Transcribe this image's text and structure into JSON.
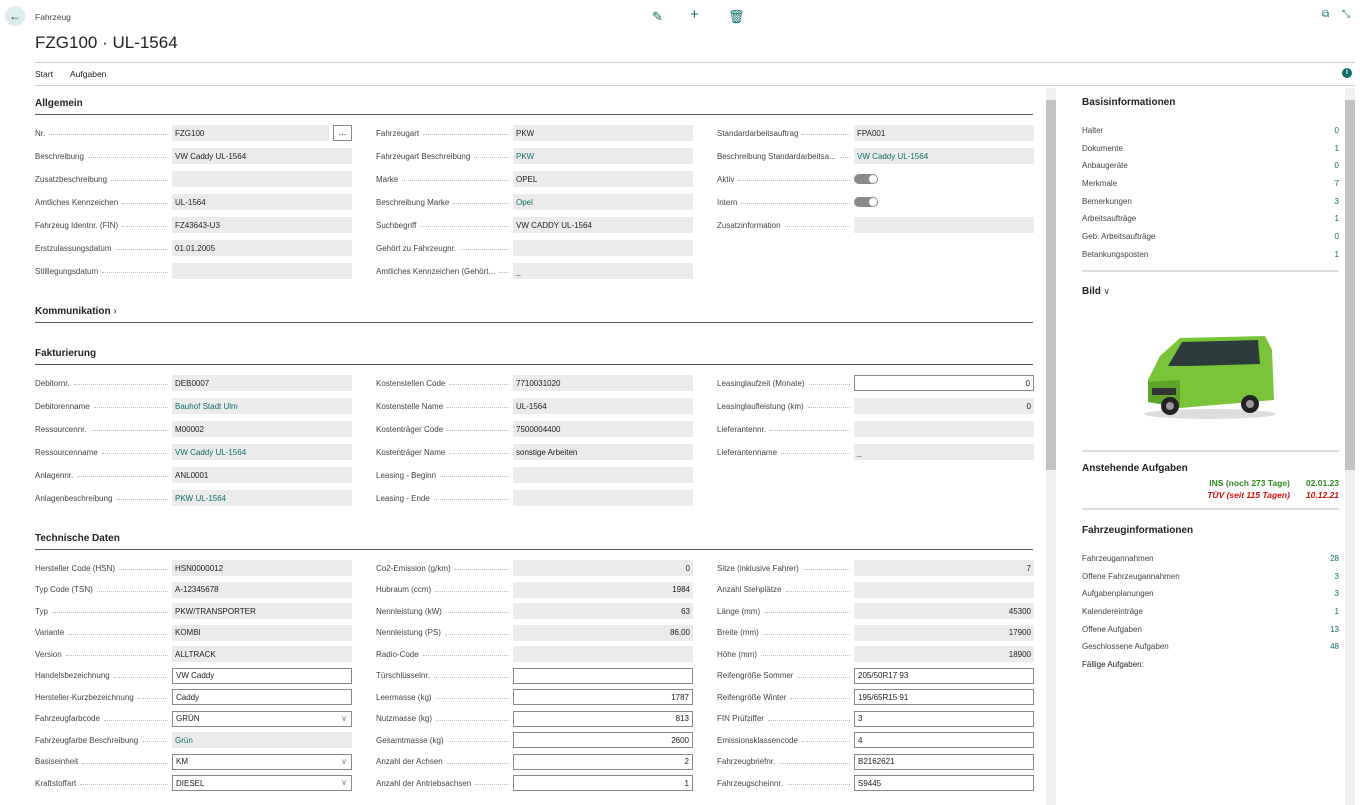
{
  "header": {
    "breadcrumb": "Fahrzeug",
    "title": "FZG100 · UL-1564",
    "icons": [
      "back-arrow-icon",
      "edit-icon",
      "plus-icon",
      "delete-icon",
      "open-new-window-icon",
      "collapse-icon"
    ]
  },
  "menu": {
    "items": [
      "Start",
      "Aufgaben"
    ]
  },
  "colors": {
    "accent": "#0b6f6a",
    "green": "#2e8b1e",
    "red": "#d01010"
  },
  "sections": [
    {
      "title": "Allgemein",
      "columns": [
        [
          {
            "label": "Nr.",
            "value": "FZG100",
            "type": "readonly",
            "lookup": "..."
          },
          {
            "label": "Beschreibung",
            "value": "VW Caddy UL-1564",
            "type": "readonly"
          },
          {
            "label": "Zusatzbeschreibung",
            "value": "",
            "type": "readonly"
          },
          {
            "label": "Amtliches Kennzeichen",
            "value": "UL-1564",
            "type": "readonly"
          },
          {
            "label": "Fahrzeug Identnr. (FIN)",
            "value": "FZ43643-U3",
            "type": "readonly"
          },
          {
            "label": "Erstzulassungsdatum",
            "value": "01.01.2005",
            "type": "readonly"
          },
          {
            "label": "Stilllegungsdatum",
            "value": "",
            "type": "readonly"
          }
        ],
        [
          {
            "label": "Fahrzeugart",
            "value": "PKW",
            "type": "readonly"
          },
          {
            "label": "Fahrzeugart Beschreibung",
            "value": "PKW",
            "type": "link"
          },
          {
            "label": "Marke",
            "value": "OPEL",
            "type": "readonly"
          },
          {
            "label": "Beschreibung Marke",
            "value": "Opel",
            "type": "link"
          },
          {
            "label": "Suchbegriff",
            "value": "VW CADDY UL-1564",
            "type": "readonly"
          },
          {
            "label": "Gehört zu Fahrzeugnr.",
            "value": "",
            "type": "readonly"
          },
          {
            "label": "Amtliches Kennzeichen (Gehört...",
            "value": "_",
            "type": "link"
          }
        ],
        [
          {
            "label": "Standardarbeitsauftrag",
            "value": "FPA001",
            "type": "readonly"
          },
          {
            "label": "Beschreibung Standardarbeitsa...",
            "value": "VW Caddy UL-1564",
            "type": "link"
          },
          {
            "label": "Aktiv",
            "value": "",
            "type": "toggle"
          },
          {
            "label": "Intern",
            "value": "",
            "type": "toggle"
          },
          {
            "label": "Zusatzinformation",
            "value": "",
            "type": "readonly"
          }
        ]
      ]
    },
    {
      "title": "Kommunikation",
      "collapsed": true,
      "columns": []
    },
    {
      "title": "Fakturierung",
      "columns": [
        [
          {
            "label": "Debitornr.",
            "value": "DEB0007",
            "type": "readonly"
          },
          {
            "label": "Debitorenname",
            "value": "Bauhof Stadt Ulm",
            "type": "link"
          },
          {
            "label": "Ressourcennr.",
            "value": "M00002",
            "type": "readonly"
          },
          {
            "label": "Ressourcenname",
            "value": "VW Caddy UL-1564",
            "type": "link"
          },
          {
            "label": "Anlagennr.",
            "value": "ANL0001",
            "type": "readonly"
          },
          {
            "label": "Anlagenbeschreibung",
            "value": "PKW UL-1564",
            "type": "link"
          }
        ],
        [
          {
            "label": "Kostenstellen Code",
            "value": "7710031020",
            "type": "readonly"
          },
          {
            "label": "Kostenstelle Name",
            "value": "UL-1564",
            "type": "readonly"
          },
          {
            "label": "Kostenträger Code",
            "value": "7500004400",
            "type": "readonly"
          },
          {
            "label": "Kostenträger Name",
            "value": "sonstige Arbeiten",
            "type": "readonly"
          },
          {
            "label": "Leasing - Beginn",
            "value": "",
            "type": "readonly"
          },
          {
            "label": "Leasing - Ende",
            "value": "",
            "type": "readonly"
          }
        ],
        [
          {
            "label": "Leasinglaufzeit (Monate)",
            "value": "0",
            "type": "input",
            "align": "right"
          },
          {
            "label": "Leasinglaufleistung (km)",
            "value": "0",
            "type": "readonly",
            "align": "right"
          },
          {
            "label": "Lieferantennr.",
            "value": "",
            "type": "readonly"
          },
          {
            "label": "Lieferantenname",
            "value": "_",
            "type": "link"
          }
        ]
      ]
    },
    {
      "title": "Technische Daten",
      "columns": [
        [
          {
            "label": "Hersteller Code (HSN)",
            "value": "HSN0000012",
            "type": "readonly"
          },
          {
            "label": "Typ Code (TSN)",
            "value": "A-12345678",
            "type": "readonly"
          },
          {
            "label": "Typ",
            "value": "PKW/TRANSPORTER",
            "type": "readonly"
          },
          {
            "label": "Variante",
            "value": "KOMBI",
            "type": "readonly"
          },
          {
            "label": "Version",
            "value": "ALLTRACK",
            "type": "readonly"
          },
          {
            "label": "Handelsbezeichnung",
            "value": "VW Caddy",
            "type": "input"
          },
          {
            "label": "Hersteller-Kurzbezeichnung",
            "value": "Caddy",
            "type": "input"
          },
          {
            "label": "Fahrzeugfarbcode",
            "value": "GRÜN",
            "type": "select"
          },
          {
            "label": "Fahrzeugfarbe Beschreibung",
            "value": "Grün",
            "type": "link"
          },
          {
            "label": "Basiseinheit",
            "value": "KM",
            "type": "select"
          },
          {
            "label": "Kraftstoffart",
            "value": "DIESEL",
            "type": "select"
          }
        ],
        [
          {
            "label": "Co2-Emission (g/km)",
            "value": "0",
            "type": "readonly",
            "align": "right"
          },
          {
            "label": "Hubraum (ccm)",
            "value": "1984",
            "type": "readonly",
            "align": "right"
          },
          {
            "label": "Nennleistung (kW)",
            "value": "63",
            "type": "readonly",
            "align": "right"
          },
          {
            "label": "Nennleistung (PS)",
            "value": "86,00",
            "type": "readonly",
            "align": "right"
          },
          {
            "label": "Radio-Code",
            "value": "",
            "type": "readonly"
          },
          {
            "label": "Türschlüsselnr.",
            "value": "",
            "type": "input"
          },
          {
            "label": "Leermasse (kg)",
            "value": "1787",
            "type": "input",
            "align": "right"
          },
          {
            "label": "Nutzmasse (kg)",
            "value": "813",
            "type": "input",
            "align": "right"
          },
          {
            "label": "Gesamtmasse (kg)",
            "value": "2600",
            "type": "input",
            "align": "right"
          },
          {
            "label": "Anzahl der Achsen",
            "value": "2",
            "type": "input",
            "align": "right"
          },
          {
            "label": "Anzahl der Antriebsachsen",
            "value": "1",
            "type": "input",
            "align": "right"
          }
        ],
        [
          {
            "label": "Sitze (inklusive Fahrer)",
            "value": "7",
            "type": "readonly",
            "align": "right"
          },
          {
            "label": "Anzahl Stehplätze",
            "value": "",
            "type": "readonly"
          },
          {
            "label": "Länge (mm)",
            "value": "45300",
            "type": "readonly",
            "align": "right"
          },
          {
            "label": "Breite (mm)",
            "value": "17900",
            "type": "readonly",
            "align": "right"
          },
          {
            "label": "Höhe (mm)",
            "value": "18900",
            "type": "readonly",
            "align": "right"
          },
          {
            "label": "Reifengröße Sommer",
            "value": "205/50R17 93",
            "type": "input"
          },
          {
            "label": "Reifengröße Winter",
            "value": "195/65R15 91",
            "type": "input"
          },
          {
            "label": "FIN Prüfziffer",
            "value": "3",
            "type": "input"
          },
          {
            "label": "Emissionsklassencode",
            "value": "4",
            "type": "input"
          },
          {
            "label": "Fahrzeugbriefnr.",
            "value": "B2162621",
            "type": "input"
          },
          {
            "label": "Fahrzeugscheinnr.",
            "value": "S9445",
            "type": "input"
          }
        ]
      ]
    }
  ],
  "factbox": {
    "basis": {
      "title": "Basisinformationen",
      "items": [
        {
          "label": "Halter",
          "value": "0"
        },
        {
          "label": "Dokumente",
          "value": "1"
        },
        {
          "label": "Anbaugeräte",
          "value": "0"
        },
        {
          "label": "Merkmale",
          "value": "7"
        },
        {
          "label": "Bemerkungen",
          "value": "3"
        },
        {
          "label": "Arbeitsaufträge",
          "value": "1"
        },
        {
          "label": "Geb. Arbeitsaufträge",
          "value": "0"
        },
        {
          "label": "Betankungsposten",
          "value": "1"
        }
      ]
    },
    "bild": {
      "title": "Bild"
    },
    "anstehend": {
      "title": "Anstehende Aufgaben",
      "items": [
        {
          "label": "INS (noch 273 Tage)",
          "date": "02.01.23",
          "status": "ok"
        },
        {
          "label": "TÜV (seit 115 Tagen)",
          "date": "10.12.21",
          "status": "overdue"
        }
      ]
    },
    "fahrzeug": {
      "title": "Fahrzeuginformationen",
      "items": [
        {
          "label": "Fahrzeugannahmen",
          "value": "28"
        },
        {
          "label": "Offene Fahrzeugannahmen",
          "value": "3"
        },
        {
          "label": "Aufgabenplanungen",
          "value": "3"
        },
        {
          "label": "Kalendereinträge",
          "value": "1"
        },
        {
          "label": "Offene Aufgaben",
          "value": "13"
        },
        {
          "label": "Geschlossene Aufgaben",
          "value": "48"
        }
      ],
      "footer": "Fällige Aufgaben:"
    }
  }
}
